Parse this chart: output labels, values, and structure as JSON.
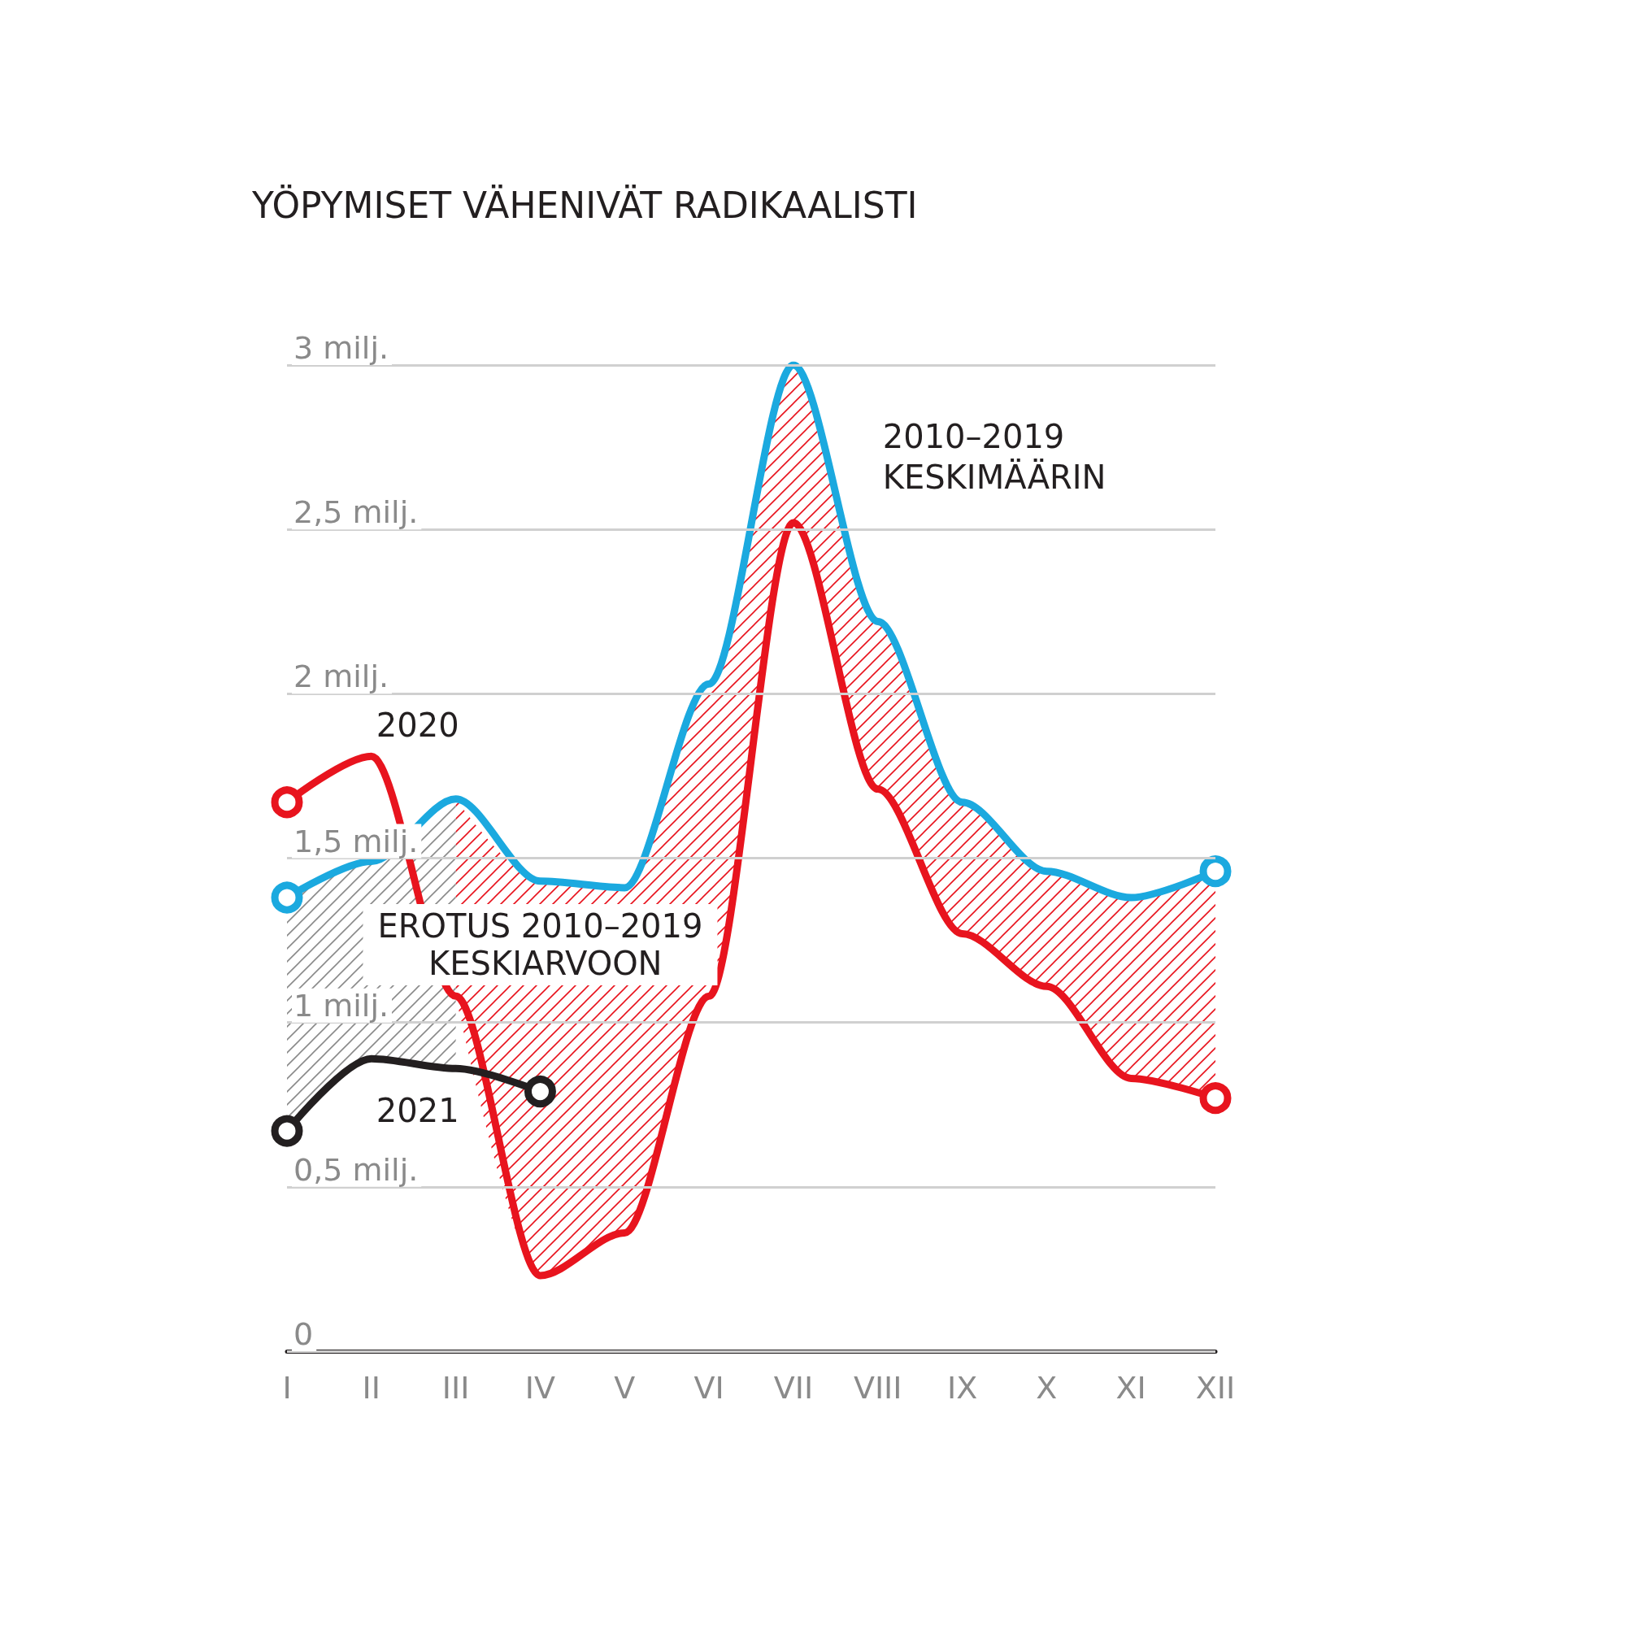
{
  "chart_data": {
    "type": "line",
    "title": "YÖPYMISET VÄHENIVÄT RADIKAALISTI",
    "categories": [
      "I",
      "II",
      "III",
      "IV",
      "V",
      "VI",
      "VII",
      "VIII",
      "IX",
      "X",
      "XI",
      "XII"
    ],
    "series": [
      {
        "name": "2010–2019 KESKIMÄÄRIN",
        "color": "#1ba9df",
        "values": [
          1.38,
          1.49,
          1.68,
          1.43,
          1.41,
          2.03,
          3.0,
          2.22,
          1.67,
          1.46,
          1.38,
          1.46
        ]
      },
      {
        "name": "2020",
        "color": "#e8141e",
        "values": [
          1.67,
          1.81,
          1.08,
          0.23,
          0.36,
          1.08,
          2.52,
          1.71,
          1.27,
          1.11,
          0.83,
          0.77
        ],
        "lower": [
          null,
          null,
          1.08,
          0.23,
          0.36,
          1.08,
          2.52,
          1.71,
          1.27,
          1.11,
          0.83,
          0.77
        ],
        "upper": [
          null,
          null,
          1.68,
          1.43,
          1.41,
          2.03,
          3.0,
          2.22,
          1.67,
          1.46,
          1.38,
          1.46
        ]
      },
      {
        "name": "2021",
        "color": "#231f20",
        "values": [
          0.67,
          0.89,
          0.86,
          0.79,
          null,
          null,
          null,
          null,
          null,
          null,
          null,
          null
        ],
        "lower": [
          0.67,
          0.89,
          0.86,
          null,
          null,
          null,
          null,
          null,
          null,
          null,
          null,
          null
        ],
        "upper": [
          1.38,
          1.49,
          1.68,
          null,
          null,
          null,
          null,
          null,
          null,
          null,
          null,
          null
        ]
      }
    ],
    "ylim": [
      0,
      3
    ],
    "yticks": [
      0,
      {
        "value": 0.5,
        "label": "0,5 milj."
      },
      {
        "value": 1,
        "label": "1 milj."
      },
      {
        "value": 1.5,
        "label": "1,5 milj."
      },
      {
        "value": 2,
        "label": "2 milj."
      },
      {
        "value": 2.5,
        "label": "2,5 milj."
      },
      {
        "value": 3,
        "label": "3 milj."
      }
    ],
    "grid": "y",
    "line_style": "solid",
    "legend": false,
    "annotations": [
      "EROTUS 2010–2019 KESKIARVOON"
    ]
  }
}
